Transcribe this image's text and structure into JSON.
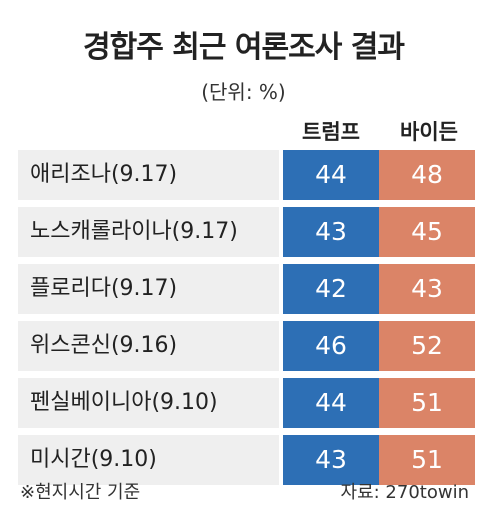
{
  "title": "경합주 최근 여론조사 결과",
  "unit_note": "(단위: %)",
  "footnote": "※현지시간 기준",
  "source": "자료: 270towin",
  "colors": {
    "trump": "#2d6fb5",
    "biden": "#db8467",
    "label_bg": "#efefef"
  },
  "chart_data": {
    "type": "table",
    "title": "경합주 최근 여론조사 결과",
    "unit": "(단위: %)",
    "columns": [
      "트럼프",
      "바이든"
    ],
    "rows": [
      {
        "label": "애리조나(9.17)",
        "trump": 44,
        "biden": 48
      },
      {
        "label": "노스캐롤라이나(9.17)",
        "trump": 43,
        "biden": 45
      },
      {
        "label": "플로리다(9.17)",
        "trump": 42,
        "biden": 43
      },
      {
        "label": "위스콘신(9.16)",
        "trump": 46,
        "biden": 52
      },
      {
        "label": "펜실베이니아(9.10)",
        "trump": 44,
        "biden": 51
      },
      {
        "label": "미시간(9.10)",
        "trump": 43,
        "biden": 51
      }
    ]
  }
}
